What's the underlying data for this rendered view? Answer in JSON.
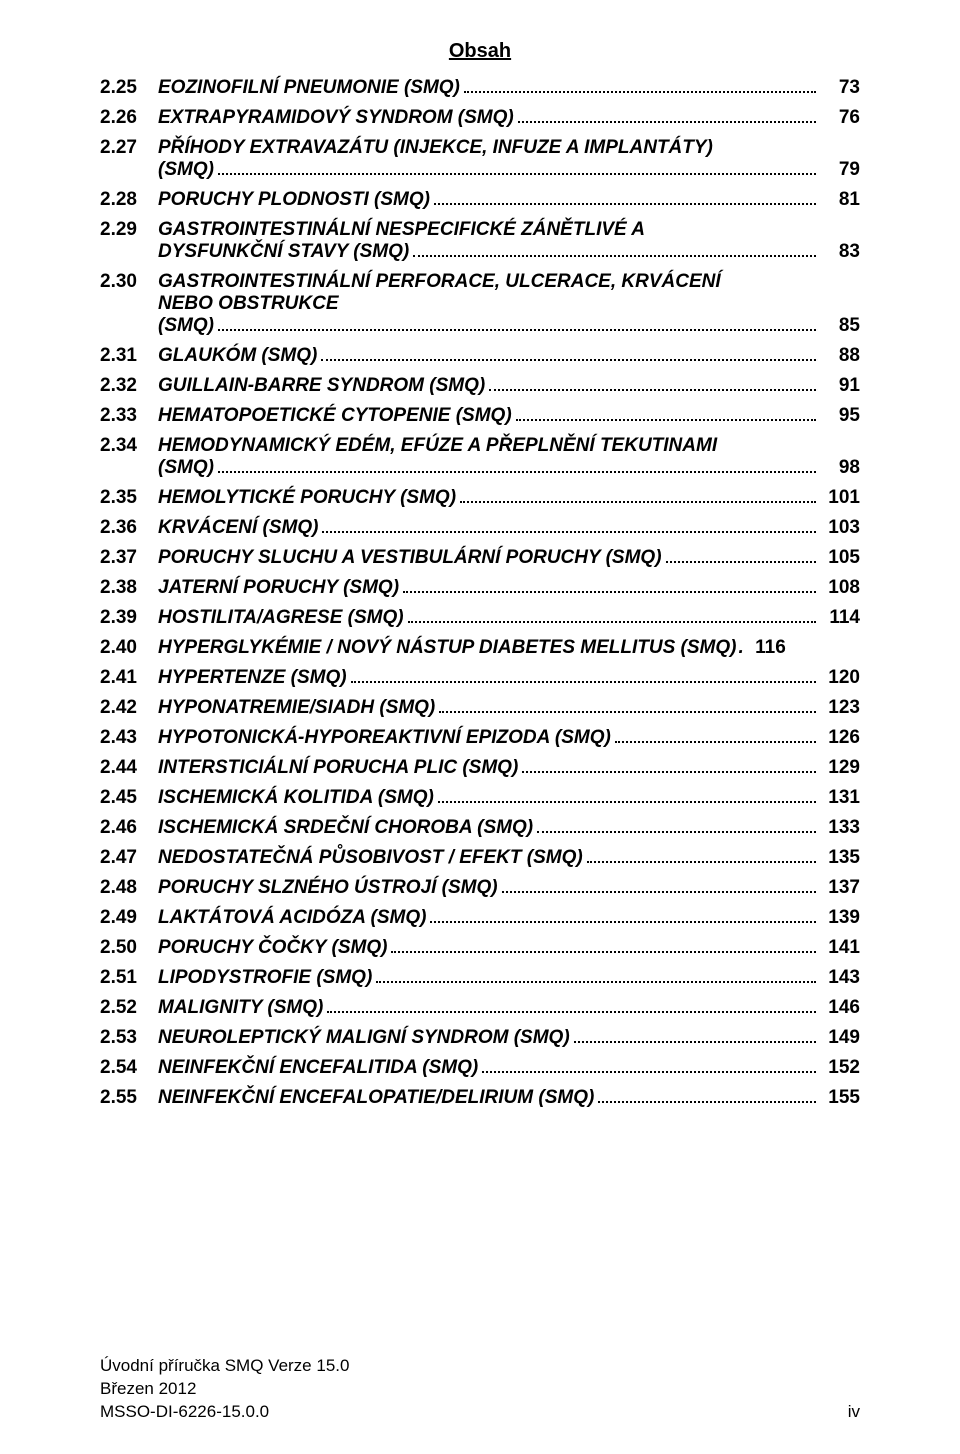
{
  "header": "Obsah",
  "entries": [
    {
      "num": "2.25",
      "title": "EOZINOFILNÍ PNEUMONIE (SMQ)",
      "page": "73"
    },
    {
      "num": "2.26",
      "title": "EXTRAPYRAMIDOVÝ SYNDROM (SMQ)",
      "page": "76"
    },
    {
      "num": "2.27",
      "title_lines": [
        "PŘÍHODY EXTRAVAZÁTU (INJEKCE, INFUZE A IMPLANTÁTY)",
        "(SMQ)"
      ],
      "page": "79"
    },
    {
      "num": "2.28",
      "title": "PORUCHY PLODNOSTI (SMQ)",
      "page": "81"
    },
    {
      "num": "2.29",
      "title_lines": [
        "GASTROINTESTINÁLNÍ NESPECIFICKÉ ZÁNĚTLIVÉ A",
        "DYSFUNKČNÍ STAVY (SMQ)"
      ],
      "page": "83"
    },
    {
      "num": "2.30",
      "title_lines": [
        "GASTROINTESTINÁLNÍ PERFORACE, ULCERACE, KRVÁCENÍ",
        "NEBO OBSTRUKCE",
        "(SMQ)"
      ],
      "page": "85"
    },
    {
      "num": "2.31",
      "title": "GLAUKÓM (SMQ)",
      "page": "88"
    },
    {
      "num": "2.32",
      "title": "GUILLAIN-BARRE SYNDROM (SMQ)",
      "page": "91"
    },
    {
      "num": "2.33",
      "title": "HEMATOPOETICKÉ CYTOPENIE (SMQ)",
      "page": "95"
    },
    {
      "num": "2.34",
      "title_lines": [
        "HEMODYNAMICKÝ EDÉM, EFÚZE A PŘEPLNĚNÍ TEKUTINAMI",
        "(SMQ)"
      ],
      "page": "98"
    },
    {
      "num": "2.35",
      "title": "HEMOLYTICKÉ PORUCHY (SMQ)",
      "page": "101"
    },
    {
      "num": "2.36",
      "title": "KRVÁCENÍ (SMQ)",
      "page": "103"
    },
    {
      "num": "2.37",
      "title": "PORUCHY SLUCHU A VESTIBULÁRNÍ PORUCHY (SMQ)",
      "page": "105"
    },
    {
      "num": "2.38",
      "title": "JATERNÍ PORUCHY (SMQ)",
      "page": "108"
    },
    {
      "num": "2.39",
      "title": "HOSTILITA/AGRESE (SMQ)",
      "page": "114"
    },
    {
      "num": "2.40",
      "title": "HYPERGLYKÉMIE / NOVÝ NÁSTUP DIABETES MELLITUS (SMQ)",
      "page": "116",
      "no_leader": true
    },
    {
      "num": "2.41",
      "title": "HYPERTENZE (SMQ)",
      "page": "120"
    },
    {
      "num": "2.42",
      "title": "HYPONATREMIE/SIADH (SMQ)",
      "page": "123"
    },
    {
      "num": "2.43",
      "title": "HYPOTONICKÁ-HYPOREAKTIVNÍ EPIZODA (SMQ)",
      "page": "126"
    },
    {
      "num": "2.44",
      "title": "INTERSTICIÁLNÍ PORUCHA PLIC (SMQ)",
      "page": "129"
    },
    {
      "num": "2.45",
      "title": "ISCHEMICKÁ KOLITIDA (SMQ)",
      "page": "131"
    },
    {
      "num": "2.46",
      "title": "ISCHEMICKÁ SRDEČNÍ CHOROBA (SMQ)",
      "page": "133"
    },
    {
      "num": "2.47",
      "title": "NEDOSTATEČNÁ PŮSOBIVOST / EFEKT (SMQ)",
      "page": "135"
    },
    {
      "num": "2.48",
      "title": "PORUCHY SLZNÉHO ÚSTROJÍ (SMQ)",
      "page": "137"
    },
    {
      "num": "2.49",
      "title": "LAKTÁTOVÁ ACIDÓZA (SMQ)",
      "page": "139"
    },
    {
      "num": "2.50",
      "title": "PORUCHY ČOČKY (SMQ)",
      "page": "141"
    },
    {
      "num": "2.51",
      "title": "LIPODYSTROFIE (SMQ)",
      "page": "143"
    },
    {
      "num": "2.52",
      "title": "MALIGNITY (SMQ)",
      "page": "146"
    },
    {
      "num": "2.53",
      "title": "NEUROLEPTICKÝ MALIGNÍ SYNDROM (SMQ)",
      "page": "149"
    },
    {
      "num": "2.54",
      "title": "NEINFEKČNÍ ENCEFALITIDA (SMQ)",
      "page": "152"
    },
    {
      "num": "2.55",
      "title": "NEINFEKČNÍ ENCEFALOPATIE/DELIRIUM (SMQ)",
      "page": "155"
    }
  ],
  "footer": {
    "line1": "Úvodní příručka SMQ Verze 15.0",
    "line2": "Březen 2012",
    "line3": "MSSO-DI-6226-15.0.0",
    "page_roman": "iv"
  }
}
